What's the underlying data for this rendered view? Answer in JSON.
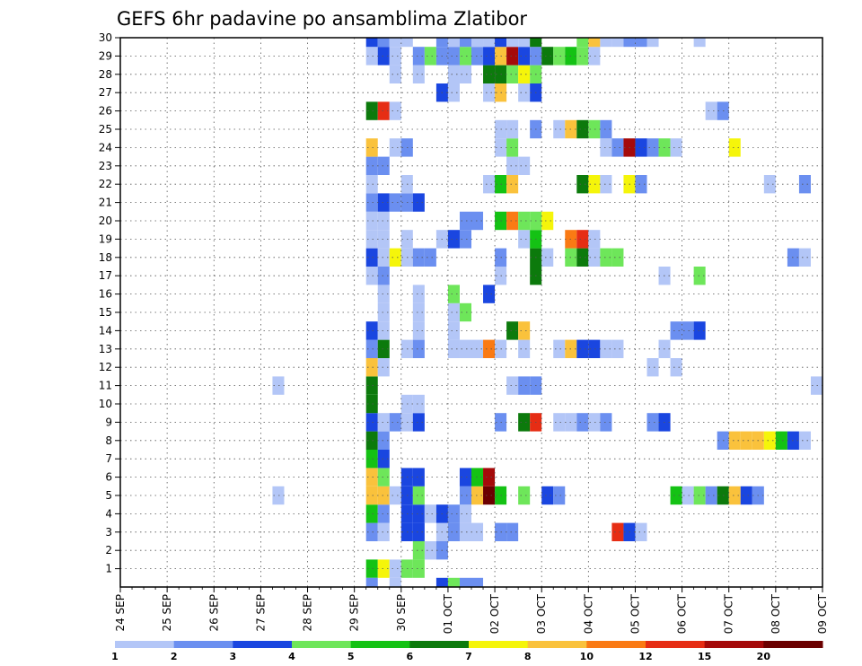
{
  "chart_data": {
    "type": "heatmap",
    "title": "GEFS 6hr padavine po ansamblima Zlatibor",
    "xlabel": "",
    "ylabel": "",
    "x_ticks": [
      "24 SEP",
      "25 SEP",
      "26 SEP",
      "27 SEP",
      "28 SEP",
      "29 SEP",
      "30 SEP",
      "01 OCT",
      "02 OCT",
      "03 OCT",
      "04 OCT",
      "05 OCT",
      "06 OCT",
      "07 OCT",
      "08 OCT",
      "09 OCT"
    ],
    "y_ticks": [
      "1",
      "2",
      "3",
      "4",
      "5",
      "6",
      "7",
      "8",
      "9",
      "10",
      "11",
      "12",
      "13",
      "14",
      "15",
      "16",
      "17",
      "18",
      "19",
      "20",
      "21",
      "22",
      "23",
      "24",
      "25",
      "26",
      "27",
      "28",
      "29",
      "30"
    ],
    "x_range": [
      "24 SEP 00Z",
      "09 OCT 00Z"
    ],
    "x_step": "6hr",
    "y_range": [
      0,
      30
    ],
    "grid": true,
    "colorbar": {
      "levels": [
        "1",
        "2",
        "3",
        "4",
        "5",
        "6",
        "7",
        "8",
        "10",
        "12",
        "15",
        "20"
      ],
      "colors": [
        "#b3c6f7",
        "#6b8ff0",
        "#1a46e0",
        "#6ee65a",
        "#14c214",
        "#0c7a0c",
        "#f5f50a",
        "#fac23c",
        "#fa7a14",
        "#e62d14",
        "#a50a0a",
        "#6b0000"
      ]
    },
    "cells": [
      [
        7,
        1,
        "#14c214"
      ],
      [
        8,
        1,
        "#f5f50a"
      ],
      [
        9,
        1,
        "#b3c6f7"
      ],
      [
        10,
        1,
        "#6ee65a"
      ],
      [
        11,
        1,
        "#6ee65a"
      ],
      [
        12,
        2,
        "#b3c6f7"
      ],
      [
        13,
        2,
        "#6b8ff0"
      ],
      [
        11,
        2,
        "#6ee65a"
      ],
      [
        7,
        3,
        "#6b8ff0"
      ],
      [
        8,
        3,
        "#b3c6f7"
      ],
      [
        10,
        3,
        "#1a46e0"
      ],
      [
        11,
        3,
        "#1a46e0"
      ],
      [
        13,
        3,
        "#b3c6f7"
      ],
      [
        14,
        3,
        "#6b8ff0"
      ],
      [
        15,
        3,
        "#b3c6f7"
      ],
      [
        16,
        3,
        "#b3c6f7"
      ],
      [
        18,
        3,
        "#6b8ff0"
      ],
      [
        19,
        3,
        "#6b8ff0"
      ],
      [
        28,
        3,
        "#e62d14"
      ],
      [
        29,
        3,
        "#1a46e0"
      ],
      [
        30,
        3,
        "#b3c6f7"
      ],
      [
        7,
        4,
        "#14c214"
      ],
      [
        8,
        4,
        "#6b8ff0"
      ],
      [
        10,
        4,
        "#1a46e0"
      ],
      [
        11,
        4,
        "#1a46e0"
      ],
      [
        12,
        4,
        "#b3c6f7"
      ],
      [
        13,
        4,
        "#1a46e0"
      ],
      [
        14,
        4,
        "#6b8ff0"
      ],
      [
        15,
        4,
        "#b3c6f7"
      ],
      [
        -1,
        5,
        "#b3c6f7"
      ],
      [
        7,
        5,
        "#fac23c"
      ],
      [
        8,
        5,
        "#fac23c"
      ],
      [
        9,
        5,
        "#b3c6f7"
      ],
      [
        10,
        5,
        "#1a46e0"
      ],
      [
        11,
        5,
        "#6ee65a"
      ],
      [
        15,
        5,
        "#6b8ff0"
      ],
      [
        16,
        5,
        "#fac23c"
      ],
      [
        17,
        5,
        "#6b0000"
      ],
      [
        18,
        5,
        "#14c214"
      ],
      [
        20,
        5,
        "#6ee65a"
      ],
      [
        22,
        5,
        "#1a46e0"
      ],
      [
        23,
        5,
        "#6b8ff0"
      ],
      [
        33,
        5,
        "#14c214"
      ],
      [
        34,
        5,
        "#b3c6f7"
      ],
      [
        35,
        5,
        "#6ee65a"
      ],
      [
        36,
        5,
        "#6b8ff0"
      ],
      [
        37,
        5,
        "#0c7a0c"
      ],
      [
        38,
        5,
        "#fac23c"
      ],
      [
        39,
        5,
        "#1a46e0"
      ],
      [
        40,
        5,
        "#6b8ff0"
      ],
      [
        7,
        6,
        "#fac23c"
      ],
      [
        8,
        6,
        "#6ee65a"
      ],
      [
        10,
        6,
        "#1a46e0"
      ],
      [
        11,
        6,
        "#1a46e0"
      ],
      [
        15,
        6,
        "#1a46e0"
      ],
      [
        16,
        6,
        "#14c214"
      ],
      [
        17,
        6,
        "#a50a0a"
      ],
      [
        7,
        7,
        "#14c214"
      ],
      [
        8,
        7,
        "#1a46e0"
      ],
      [
        7,
        8,
        "#0c7a0c"
      ],
      [
        8,
        8,
        "#6b8ff0"
      ],
      [
        37,
        8,
        "#6b8ff0"
      ],
      [
        38,
        8,
        "#fac23c"
      ],
      [
        39,
        8,
        "#fac23c"
      ],
      [
        40,
        8,
        "#fac23c"
      ],
      [
        41,
        8,
        "#f5f50a"
      ],
      [
        42,
        8,
        "#14c214"
      ],
      [
        43,
        8,
        "#1a46e0"
      ],
      [
        44,
        8,
        "#b3c6f7"
      ],
      [
        7,
        9,
        "#1a46e0"
      ],
      [
        8,
        9,
        "#b3c6f7"
      ],
      [
        9,
        9,
        "#6b8ff0"
      ],
      [
        10,
        9,
        "#b3c6f7"
      ],
      [
        11,
        9,
        "#1a46e0"
      ],
      [
        18,
        9,
        "#6b8ff0"
      ],
      [
        20,
        9,
        "#0c7a0c"
      ],
      [
        21,
        9,
        "#e62d14"
      ],
      [
        23,
        9,
        "#b3c6f7"
      ],
      [
        24,
        9,
        "#b3c6f7"
      ],
      [
        25,
        9,
        "#6b8ff0"
      ],
      [
        26,
        9,
        "#b3c6f7"
      ],
      [
        27,
        9,
        "#6b8ff0"
      ],
      [
        31,
        9,
        "#6b8ff0"
      ],
      [
        32,
        9,
        "#1a46e0"
      ],
      [
        7,
        10,
        "#0c7a0c"
      ],
      [
        10,
        10,
        "#b3c6f7"
      ],
      [
        11,
        10,
        "#b3c6f7"
      ],
      [
        7,
        11,
        "#0c7a0c"
      ],
      [
        -1,
        11,
        "#b3c6f7"
      ],
      [
        19,
        11,
        "#b3c6f7"
      ],
      [
        20,
        11,
        "#6b8ff0"
      ],
      [
        21,
        11,
        "#6b8ff0"
      ],
      [
        45,
        11,
        "#b3c6f7"
      ],
      [
        7,
        12,
        "#fac23c"
      ],
      [
        8,
        12,
        "#b3c6f7"
      ],
      [
        31,
        12,
        "#b3c6f7"
      ],
      [
        33,
        12,
        "#b3c6f7"
      ],
      [
        7,
        13,
        "#6b8ff0"
      ],
      [
        8,
        13,
        "#0c7a0c"
      ],
      [
        10,
        13,
        "#b3c6f7"
      ],
      [
        11,
        13,
        "#6b8ff0"
      ],
      [
        14,
        13,
        "#b3c6f7"
      ],
      [
        15,
        13,
        "#b3c6f7"
      ],
      [
        16,
        13,
        "#b3c6f7"
      ],
      [
        17,
        13,
        "#fa7a14"
      ],
      [
        18,
        13,
        "#b3c6f7"
      ],
      [
        20,
        13,
        "#b3c6f7"
      ],
      [
        23,
        13,
        "#b3c6f7"
      ],
      [
        24,
        13,
        "#fac23c"
      ],
      [
        25,
        13,
        "#1a46e0"
      ],
      [
        26,
        13,
        "#1a46e0"
      ],
      [
        27,
        13,
        "#b3c6f7"
      ],
      [
        28,
        13,
        "#b3c6f7"
      ],
      [
        32,
        13,
        "#b3c6f7"
      ],
      [
        7,
        14,
        "#1a46e0"
      ],
      [
        8,
        14,
        "#b3c6f7"
      ],
      [
        11,
        14,
        "#b3c6f7"
      ],
      [
        14,
        14,
        "#b3c6f7"
      ],
      [
        19,
        14,
        "#0c7a0c"
      ],
      [
        20,
        14,
        "#fac23c"
      ],
      [
        33,
        14,
        "#6b8ff0"
      ],
      [
        34,
        14,
        "#6b8ff0"
      ],
      [
        35,
        14,
        "#1a46e0"
      ],
      [
        8,
        15,
        "#b3c6f7"
      ],
      [
        11,
        15,
        "#b3c6f7"
      ],
      [
        14,
        15,
        "#b3c6f7"
      ],
      [
        15,
        15,
        "#6ee65a"
      ],
      [
        8,
        16,
        "#b3c6f7"
      ],
      [
        11,
        16,
        "#b3c6f7"
      ],
      [
        14,
        16,
        "#6ee65a"
      ],
      [
        17,
        16,
        "#1a46e0"
      ],
      [
        7,
        17,
        "#b3c6f7"
      ],
      [
        8,
        17,
        "#6b8ff0"
      ],
      [
        18,
        17,
        "#b3c6f7"
      ],
      [
        21,
        17,
        "#0c7a0c"
      ],
      [
        32,
        17,
        "#b3c6f7"
      ],
      [
        35,
        17,
        "#6ee65a"
      ],
      [
        7,
        18,
        "#1a46e0"
      ],
      [
        8,
        18,
        "#b3c6f7"
      ],
      [
        9,
        18,
        "#f5f50a"
      ],
      [
        10,
        18,
        "#b3c6f7"
      ],
      [
        11,
        18,
        "#6b8ff0"
      ],
      [
        12,
        18,
        "#6b8ff0"
      ],
      [
        18,
        18,
        "#6b8ff0"
      ],
      [
        21,
        18,
        "#0c7a0c"
      ],
      [
        22,
        18,
        "#b3c6f7"
      ],
      [
        24,
        18,
        "#6ee65a"
      ],
      [
        25,
        18,
        "#0c7a0c"
      ],
      [
        26,
        18,
        "#b3c6f7"
      ],
      [
        27,
        18,
        "#6ee65a"
      ],
      [
        28,
        18,
        "#6ee65a"
      ],
      [
        43,
        18,
        "#6b8ff0"
      ],
      [
        44,
        18,
        "#b3c6f7"
      ],
      [
        7,
        19,
        "#b3c6f7"
      ],
      [
        8,
        19,
        "#b3c6f7"
      ],
      [
        10,
        19,
        "#b3c6f7"
      ],
      [
        13,
        19,
        "#b3c6f7"
      ],
      [
        14,
        19,
        "#1a46e0"
      ],
      [
        15,
        19,
        "#6b8ff0"
      ],
      [
        20,
        19,
        "#b3c6f7"
      ],
      [
        21,
        19,
        "#14c214"
      ],
      [
        24,
        19,
        "#fa7a14"
      ],
      [
        25,
        19,
        "#e62d14"
      ],
      [
        26,
        19,
        "#b3c6f7"
      ],
      [
        7,
        20,
        "#b3c6f7"
      ],
      [
        8,
        20,
        "#b3c6f7"
      ],
      [
        15,
        20,
        "#6b8ff0"
      ],
      [
        16,
        20,
        "#6b8ff0"
      ],
      [
        18,
        20,
        "#14c214"
      ],
      [
        19,
        20,
        "#fa7a14"
      ],
      [
        20,
        20,
        "#6ee65a"
      ],
      [
        21,
        20,
        "#6ee65a"
      ],
      [
        22,
        20,
        "#f5f50a"
      ],
      [
        7,
        21,
        "#6b8ff0"
      ],
      [
        8,
        21,
        "#1a46e0"
      ],
      [
        9,
        21,
        "#6b8ff0"
      ],
      [
        10,
        21,
        "#6b8ff0"
      ],
      [
        11,
        21,
        "#1a46e0"
      ],
      [
        7,
        22,
        "#b3c6f7"
      ],
      [
        10,
        22,
        "#b3c6f7"
      ],
      [
        17,
        22,
        "#b3c6f7"
      ],
      [
        18,
        22,
        "#14c214"
      ],
      [
        19,
        22,
        "#fac23c"
      ],
      [
        25,
        22,
        "#0c7a0c"
      ],
      [
        26,
        22,
        "#f5f50a"
      ],
      [
        27,
        22,
        "#b3c6f7"
      ],
      [
        29,
        22,
        "#f5f50a"
      ],
      [
        30,
        22,
        "#6b8ff0"
      ],
      [
        41,
        22,
        "#b3c6f7"
      ],
      [
        44,
        22,
        "#6b8ff0"
      ],
      [
        7,
        23,
        "#6b8ff0"
      ],
      [
        8,
        23,
        "#6b8ff0"
      ],
      [
        19,
        23,
        "#b3c6f7"
      ],
      [
        20,
        23,
        "#b3c6f7"
      ],
      [
        7,
        24,
        "#fac23c"
      ],
      [
        9,
        24,
        "#b3c6f7"
      ],
      [
        10,
        24,
        "#6b8ff0"
      ],
      [
        18,
        24,
        "#b3c6f7"
      ],
      [
        19,
        24,
        "#6ee65a"
      ],
      [
        27,
        24,
        "#b3c6f7"
      ],
      [
        28,
        24,
        "#6b8ff0"
      ],
      [
        29,
        24,
        "#a50a0a"
      ],
      [
        30,
        24,
        "#1a46e0"
      ],
      [
        31,
        24,
        "#6b8ff0"
      ],
      [
        32,
        24,
        "#6ee65a"
      ],
      [
        33,
        24,
        "#b3c6f7"
      ],
      [
        38,
        24,
        "#f5f50a"
      ],
      [
        18,
        25,
        "#b3c6f7"
      ],
      [
        19,
        25,
        "#b3c6f7"
      ],
      [
        21,
        25,
        "#6b8ff0"
      ],
      [
        23,
        25,
        "#b3c6f7"
      ],
      [
        24,
        25,
        "#fac23c"
      ],
      [
        25,
        25,
        "#0c7a0c"
      ],
      [
        26,
        25,
        "#6ee65a"
      ],
      [
        27,
        25,
        "#6b8ff0"
      ],
      [
        7,
        26,
        "#0c7a0c"
      ],
      [
        8,
        26,
        "#e62d14"
      ],
      [
        9,
        26,
        "#b3c6f7"
      ],
      [
        36,
        26,
        "#b3c6f7"
      ],
      [
        37,
        26,
        "#6b8ff0"
      ],
      [
        13,
        27,
        "#1a46e0"
      ],
      [
        14,
        27,
        "#b3c6f7"
      ],
      [
        17,
        27,
        "#b3c6f7"
      ],
      [
        18,
        27,
        "#fac23c"
      ],
      [
        20,
        27,
        "#b3c6f7"
      ],
      [
        21,
        27,
        "#1a46e0"
      ],
      [
        9,
        28,
        "#b3c6f7"
      ],
      [
        11,
        28,
        "#b3c6f7"
      ],
      [
        14,
        28,
        "#b3c6f7"
      ],
      [
        15,
        28,
        "#b3c6f7"
      ],
      [
        17,
        28,
        "#0c7a0c"
      ],
      [
        18,
        28,
        "#0c7a0c"
      ],
      [
        19,
        28,
        "#6ee65a"
      ],
      [
        20,
        28,
        "#f5f50a"
      ],
      [
        21,
        28,
        "#6ee65a"
      ],
      [
        7,
        29,
        "#b3c6f7"
      ],
      [
        8,
        29,
        "#1a46e0"
      ],
      [
        9,
        29,
        "#b3c6f7"
      ],
      [
        11,
        29,
        "#6b8ff0"
      ],
      [
        12,
        29,
        "#6ee65a"
      ],
      [
        13,
        29,
        "#6b8ff0"
      ],
      [
        14,
        29,
        "#6b8ff0"
      ],
      [
        15,
        29,
        "#6ee65a"
      ],
      [
        16,
        29,
        "#6b8ff0"
      ],
      [
        17,
        29,
        "#1a46e0"
      ],
      [
        18,
        29,
        "#fac23c"
      ],
      [
        19,
        29,
        "#a50a0a"
      ],
      [
        20,
        29,
        "#1a46e0"
      ],
      [
        21,
        29,
        "#6b8ff0"
      ],
      [
        22,
        29,
        "#0c7a0c"
      ],
      [
        23,
        29,
        "#6ee65a"
      ],
      [
        24,
        29,
        "#14c214"
      ],
      [
        25,
        29,
        "#6ee65a"
      ],
      [
        26,
        29,
        "#b3c6f7"
      ],
      [
        7,
        30,
        "#1a46e0"
      ],
      [
        8,
        30,
        "#6b8ff0"
      ],
      [
        9,
        30,
        "#b3c6f7"
      ],
      [
        10,
        30,
        "#b3c6f7"
      ],
      [
        13,
        30,
        "#6b8ff0"
      ],
      [
        14,
        30,
        "#b3c6f7"
      ],
      [
        15,
        30,
        "#6b8ff0"
      ],
      [
        16,
        30,
        "#b3c6f7"
      ],
      [
        17,
        30,
        "#b3c6f7"
      ],
      [
        18,
        30,
        "#1a46e0"
      ],
      [
        19,
        30,
        "#b3c6f7"
      ],
      [
        20,
        30,
        "#b3c6f7"
      ],
      [
        21,
        30,
        "#0c7a0c"
      ],
      [
        25,
        30,
        "#6ee65a"
      ],
      [
        26,
        30,
        "#fac23c"
      ],
      [
        27,
        30,
        "#b3c6f7"
      ],
      [
        28,
        30,
        "#b3c6f7"
      ],
      [
        29,
        30,
        "#6b8ff0"
      ],
      [
        30,
        30,
        "#6b8ff0"
      ],
      [
        31,
        30,
        "#b3c6f7"
      ],
      [
        35,
        30,
        "#b3c6f7"
      ],
      [
        7,
        0,
        "#6b8ff0"
      ],
      [
        9,
        0,
        "#b3c6f7"
      ],
      [
        13,
        0,
        "#1a46e0"
      ],
      [
        14,
        0,
        "#6ee65a"
      ],
      [
        15,
        0,
        "#6b8ff0"
      ],
      [
        16,
        0,
        "#6b8ff0"
      ]
    ]
  }
}
